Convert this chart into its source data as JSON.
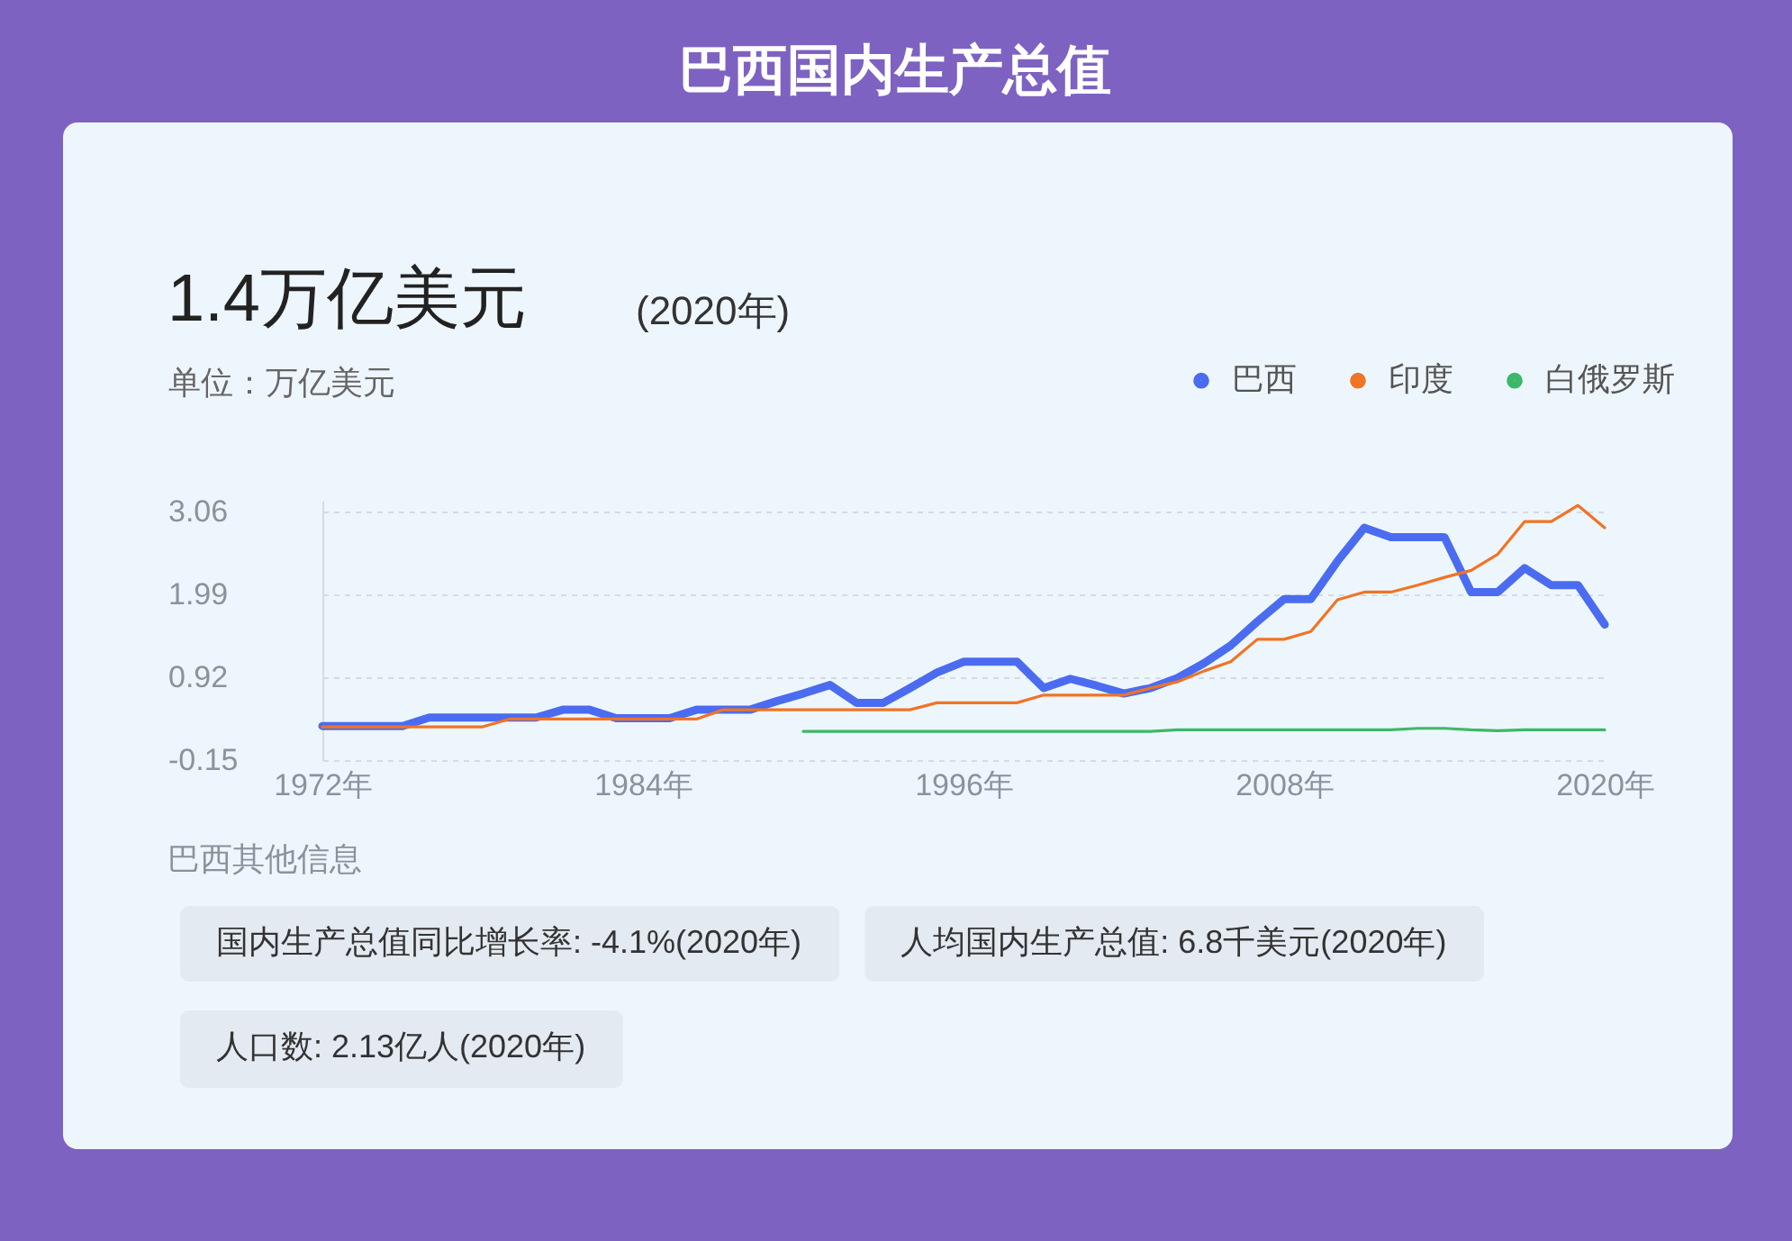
{
  "chart_data": {
    "type": "line",
    "title": "巴西国内生产总值",
    "ylabel": "单位：万亿美元",
    "annotations": [
      "1.4万亿美元",
      "(2020年)",
      "巴西其他信息",
      "国内生产总值同比增长率: -4.1%(2020年)",
      "人均国内生产总值: 6.8千美元(2020年)",
      "人口数: 2.13亿人(2020年)"
    ],
    "x": [
      1972,
      1973,
      1974,
      1975,
      1976,
      1977,
      1978,
      1979,
      1980,
      1981,
      1982,
      1983,
      1984,
      1985,
      1986,
      1987,
      1988,
      1989,
      1990,
      1991,
      1992,
      1993,
      1994,
      1995,
      1996,
      1997,
      1998,
      1999,
      2000,
      2001,
      2002,
      2003,
      2004,
      2005,
      2006,
      2007,
      2008,
      2009,
      2010,
      2011,
      2012,
      2013,
      2014,
      2015,
      2016,
      2017,
      2018,
      2019,
      2020
    ],
    "series": [
      {
        "name": "巴西",
        "color": "#4b6cf0",
        "values": [
          0.29,
          0.29,
          0.29,
          0.29,
          0.4,
          0.4,
          0.4,
          0.4,
          0.4,
          0.5,
          0.5,
          0.39,
          0.39,
          0.39,
          0.5,
          0.5,
          0.5,
          0.61,
          0.71,
          0.82,
          0.59,
          0.59,
          0.78,
          0.98,
          1.12,
          1.12,
          1.12,
          0.78,
          0.9,
          0.81,
          0.71,
          0.78,
          0.91,
          1.1,
          1.33,
          1.64,
          1.93,
          1.93,
          2.42,
          2.85,
          2.73,
          2.73,
          2.73,
          2.02,
          2.02,
          2.33,
          2.11,
          2.11,
          1.6
        ]
      },
      {
        "name": "印度",
        "color": "#f07425",
        "values": [
          0.28,
          0.28,
          0.28,
          0.28,
          0.28,
          0.28,
          0.28,
          0.38,
          0.38,
          0.38,
          0.38,
          0.38,
          0.38,
          0.38,
          0.38,
          0.5,
          0.5,
          0.5,
          0.5,
          0.5,
          0.5,
          0.5,
          0.5,
          0.59,
          0.59,
          0.59,
          0.59,
          0.69,
          0.69,
          0.69,
          0.69,
          0.78,
          0.86,
          1.0,
          1.12,
          1.41,
          1.41,
          1.51,
          1.92,
          2.02,
          2.02,
          2.11,
          2.21,
          2.3,
          2.51,
          2.93,
          2.93,
          3.14,
          2.85
        ]
      },
      {
        "name": "白俄罗斯",
        "color": "#3db86a",
        "x": [
          1990,
          1991,
          1992,
          1993,
          1994,
          1995,
          1996,
          1997,
          1998,
          1999,
          2000,
          2001,
          2002,
          2003,
          2004,
          2005,
          2006,
          2007,
          2008,
          2009,
          2010,
          2011,
          2012,
          2013,
          2014,
          2015,
          2016,
          2017,
          2018,
          2019,
          2020
        ],
        "values": [
          0.22,
          0.22,
          0.22,
          0.22,
          0.22,
          0.22,
          0.22,
          0.22,
          0.22,
          0.22,
          0.22,
          0.22,
          0.22,
          0.22,
          0.24,
          0.24,
          0.24,
          0.24,
          0.24,
          0.24,
          0.24,
          0.24,
          0.24,
          0.26,
          0.26,
          0.24,
          0.23,
          0.24,
          0.24,
          0.24,
          0.24
        ]
      }
    ],
    "xlim": [
      1972,
      2020
    ],
    "xticks": [
      {
        "value": 1972,
        "label": "1972年"
      },
      {
        "value": 1984,
        "label": "1984年"
      },
      {
        "value": 1996,
        "label": "1996年"
      },
      {
        "value": 2008,
        "label": "2008年"
      },
      {
        "value": 2020,
        "label": "2020年"
      }
    ],
    "ylim": [
      -0.15,
      3.2
    ],
    "yticks": [
      -0.15,
      0.92,
      1.99,
      3.06
    ],
    "grid": "y",
    "legend": "top right"
  }
}
